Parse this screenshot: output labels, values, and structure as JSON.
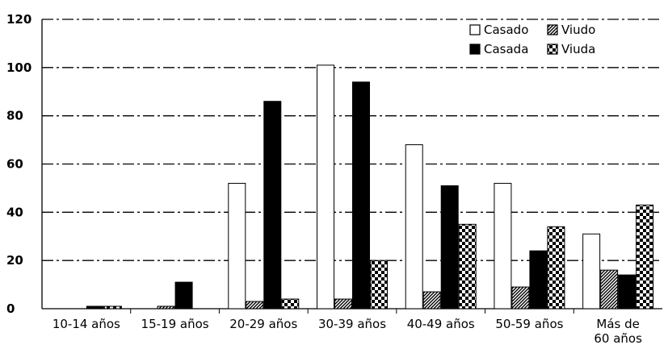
{
  "chart_data": {
    "type": "bar",
    "title": "",
    "xlabel": "",
    "ylabel": "",
    "ylim": [
      0,
      120
    ],
    "yticks": [
      0,
      20,
      40,
      60,
      80,
      100,
      120
    ],
    "grid": true,
    "legend_position": "top-right",
    "categories": [
      [
        "10-14 años"
      ],
      [
        "15-19 años"
      ],
      [
        "20-29 años"
      ],
      [
        "30-39 años"
      ],
      [
        "40-49 años"
      ],
      [
        "50-59 años"
      ],
      [
        "Más de",
        "60 años"
      ]
    ],
    "series": [
      {
        "name": "Casado",
        "pattern": "white",
        "values": [
          0,
          0,
          52,
          101,
          68,
          52,
          31
        ]
      },
      {
        "name": "Viudo",
        "pattern": "diagonal-hatch",
        "values": [
          0,
          1,
          3,
          4,
          7,
          9,
          16
        ]
      },
      {
        "name": "Casada",
        "pattern": "solid-black",
        "values": [
          1,
          11,
          86,
          94,
          51,
          24,
          14
        ]
      },
      {
        "name": "Viuda",
        "pattern": "checkerboard",
        "values": [
          1,
          0,
          4,
          20,
          35,
          34,
          43
        ]
      }
    ],
    "colors": {
      "bar_outline": "#000000",
      "fill_dark": "#000000",
      "fill_light": "#ffffff",
      "grid": "#000000"
    }
  }
}
